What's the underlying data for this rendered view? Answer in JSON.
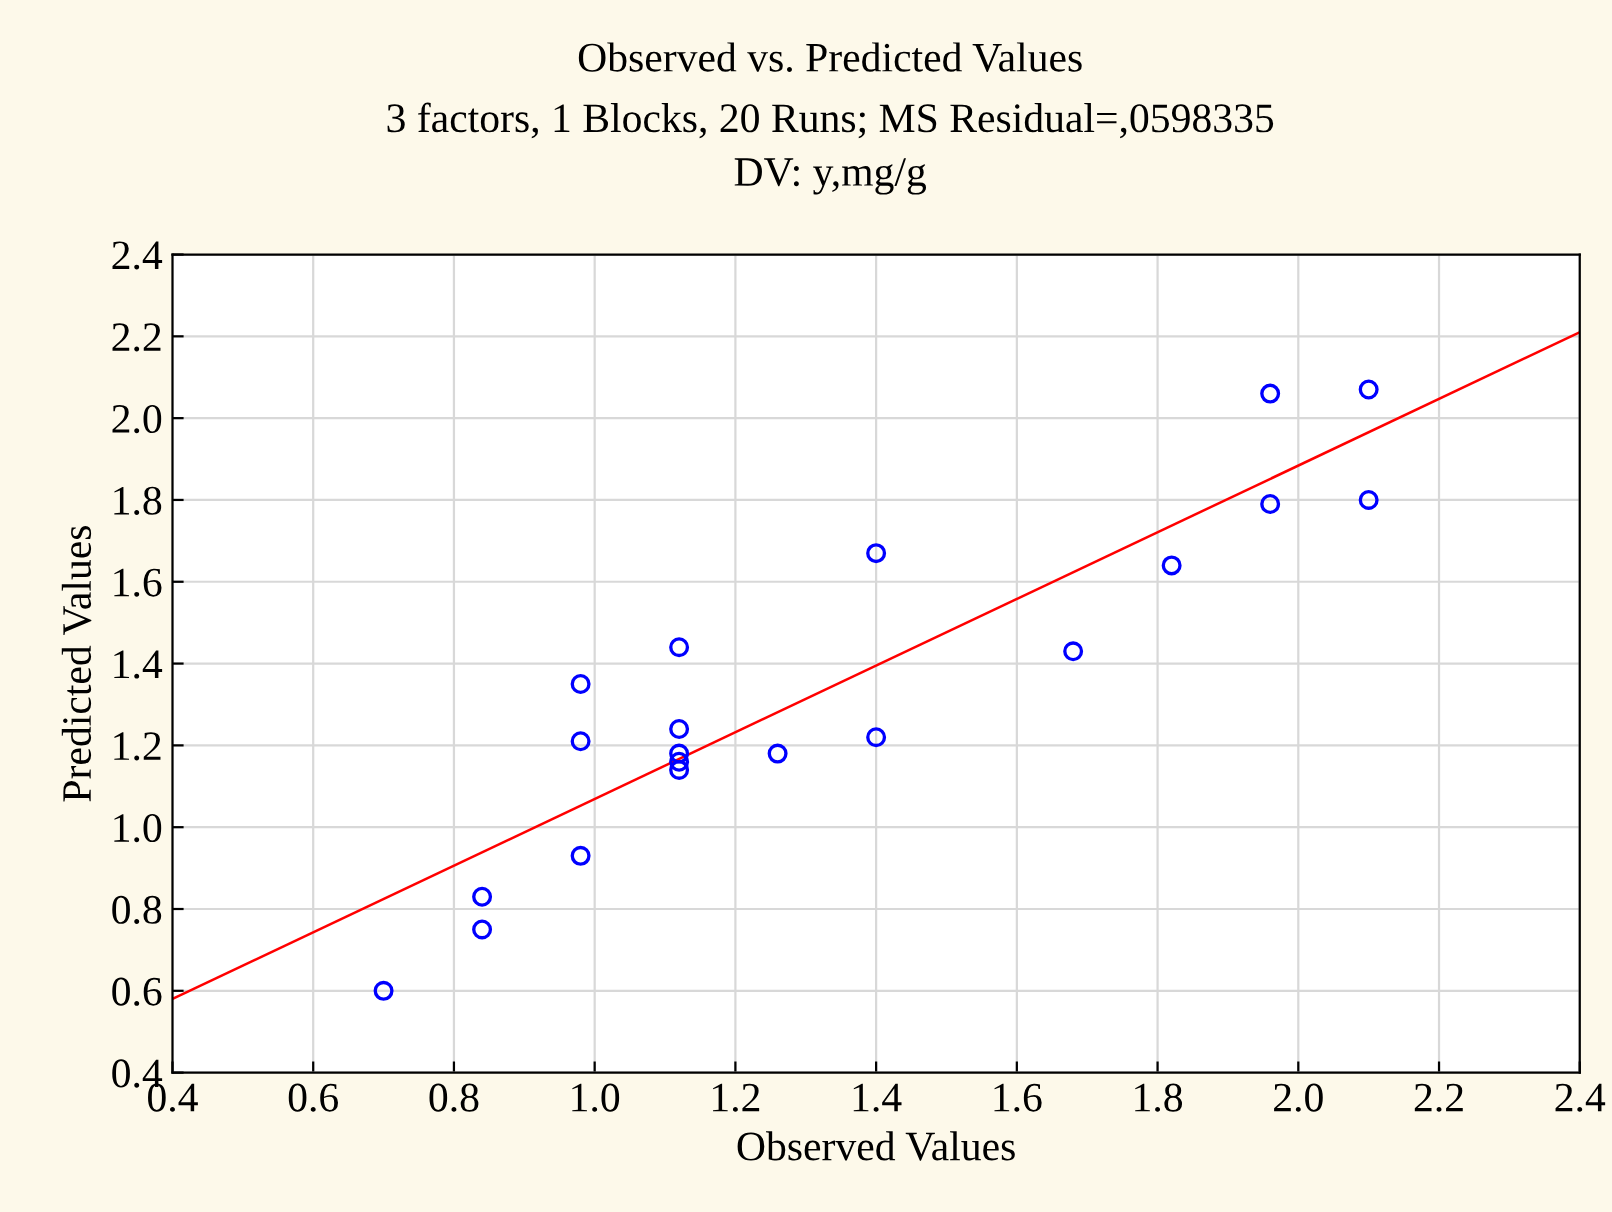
{
  "chart_data": {
    "type": "scatter",
    "title": "Observed vs. Predicted Values",
    "subtitle": "3 factors, 1 Blocks, 20 Runs; MS Residual=,0598335\nDV: y,mg/g",
    "xlabel": "Observed Values",
    "ylabel": "Predicted Values",
    "series": [
      {
        "color": "#0000ff",
        "marker": "circle",
        "x": [
          0.7,
          0.84,
          0.84,
          0.98,
          0.98,
          0.98,
          1.12,
          1.12,
          1.12,
          1.12,
          1.12,
          1.26,
          1.4,
          1.4,
          1.68,
          1.82,
          1.96,
          1.96,
          2.1,
          2.1
        ],
        "values": [
          0.6,
          0.83,
          0.75,
          0.93,
          1.21,
          1.35,
          1.44,
          1.24,
          1.18,
          1.16,
          1.14,
          1.18,
          1.67,
          1.22,
          1.43,
          1.64,
          2.06,
          1.79,
          2.07,
          1.8
        ]
      },
      {
        "type": "line",
        "color": "#ff0000",
        "x": [
          0.4,
          2.4
        ],
        "values": [
          0.58,
          2.21
        ]
      }
    ],
    "xlim": [
      0.4,
      2.4
    ],
    "ylim": [
      0.4,
      2.4
    ],
    "xticks": [
      0.4,
      0.6,
      0.8,
      {
        "value": 1,
        "label": "1.0"
      },
      1.2,
      1.4,
      1.6,
      1.8,
      {
        "value": 2,
        "label": "2.0"
      },
      2.2,
      2.4
    ],
    "yticks": [
      0.4,
      0.6,
      0.8,
      {
        "value": 1,
        "label": "1.0"
      },
      1.2,
      1.4,
      1.6,
      1.8,
      {
        "value": 2,
        "label": "2.0"
      },
      2.2,
      2.4
    ],
    "grid": true
  }
}
